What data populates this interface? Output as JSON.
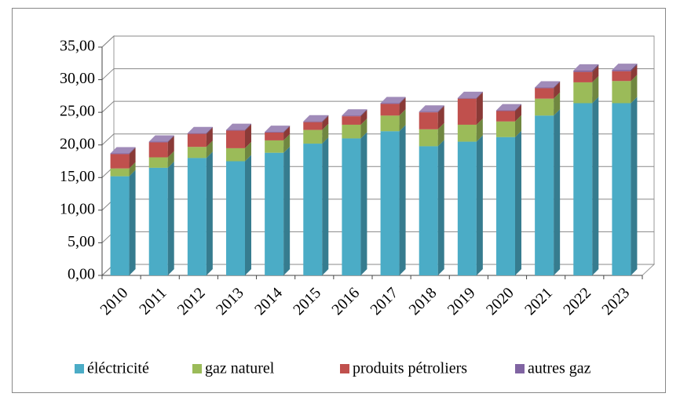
{
  "chart_data": {
    "type": "bar",
    "stacked": true,
    "categories": [
      "2010",
      "2011",
      "2012",
      "2013",
      "2014",
      "2015",
      "2016",
      "2017",
      "2018",
      "2019",
      "2020",
      "2021",
      "2022",
      "2023"
    ],
    "series": [
      {
        "name": "éléctricité",
        "color": "#4bacc6",
        "values": [
          15.2,
          16.5,
          18.0,
          17.5,
          18.8,
          20.2,
          21.0,
          22.1,
          19.8,
          20.5,
          21.2,
          24.5,
          26.4,
          26.4
        ]
      },
      {
        "name": "gaz naturel",
        "color": "#9bbb59",
        "values": [
          1.2,
          1.6,
          1.7,
          2.0,
          1.9,
          2.1,
          2.1,
          2.4,
          2.6,
          2.6,
          2.4,
          2.6,
          3.2,
          3.4
        ]
      },
      {
        "name": "produits pétroliers",
        "color": "#c0504d",
        "values": [
          2.2,
          2.3,
          2.0,
          2.7,
          1.2,
          1.2,
          1.3,
          1.8,
          2.6,
          4.0,
          1.6,
          1.6,
          1.6,
          1.5
        ]
      },
      {
        "name": "autres gaz",
        "color": "#8064a2",
        "values": [
          0.1,
          0.1,
          0.1,
          0.1,
          0.1,
          0.1,
          0.1,
          0.1,
          0.1,
          0.1,
          0.1,
          0.1,
          0.2,
          0.2
        ]
      }
    ],
    "ylim": [
      0,
      35
    ],
    "yticks": [
      {
        "value": 0,
        "label": "0,00"
      },
      {
        "value": 5,
        "label": "5,00"
      },
      {
        "value": 10,
        "label": "10,00"
      },
      {
        "value": 15,
        "label": "15,00"
      },
      {
        "value": 20,
        "label": "20,00"
      },
      {
        "value": 25,
        "label": "25,00"
      },
      {
        "value": 30,
        "label": "30,00"
      },
      {
        "value": 35,
        "label": "35,00"
      }
    ],
    "grid": true,
    "legend": "bottom"
  }
}
